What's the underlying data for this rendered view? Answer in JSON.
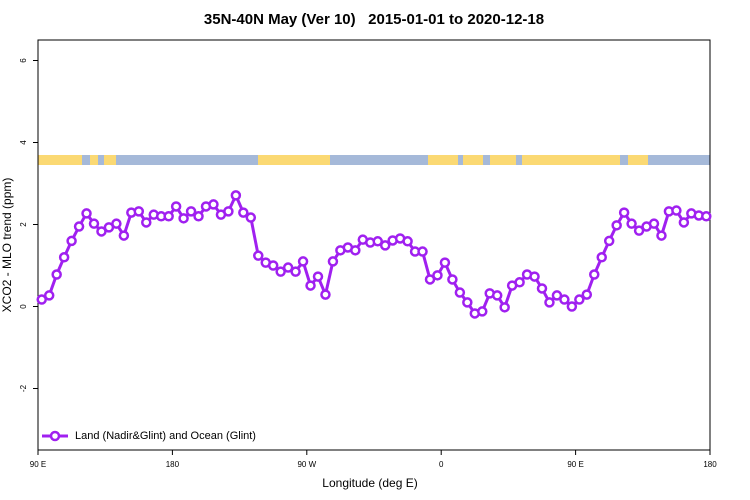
{
  "chart_data": {
    "type": "line",
    "title": "35N-40N May (Ver 10)   2015-01-01 to 2020-12-18",
    "x_label": "Longitude (deg E)",
    "y_label": "XCO2 - MLO trend (ppm)",
    "xlim": [
      90,
      540
    ],
    "ylim": [
      -3.5,
      6.5
    ],
    "xticks": [
      {
        "value": 90,
        "label": "90 E"
      },
      {
        "value": 180,
        "label": "180"
      },
      {
        "value": 270,
        "label": "90 W"
      },
      {
        "value": 360,
        "label": "0"
      },
      {
        "value": 450,
        "label": "90 E"
      },
      {
        "value": 540,
        "label": "180"
      }
    ],
    "yticks": [
      -2,
      0,
      2,
      4,
      6
    ],
    "legend": "bottom-left",
    "x": [
      92.5,
      97.5,
      102.5,
      107.5,
      112.5,
      117.5,
      122.5,
      127.5,
      132.5,
      137.5,
      142.5,
      147.5,
      152.5,
      157.5,
      162.5,
      167.5,
      172.5,
      177.5,
      182.5,
      187.5,
      192.5,
      197.5,
      202.5,
      207.5,
      212.5,
      217.5,
      222.5,
      227.5,
      232.5,
      237.5,
      242.5,
      247.5,
      252.5,
      257.5,
      262.5,
      267.5,
      272.5,
      277.5,
      282.5,
      287.5,
      292.5,
      297.5,
      302.5,
      307.5,
      312.5,
      317.5,
      322.5,
      327.5,
      332.5,
      337.5,
      342.5,
      347.5,
      352.5,
      357.5,
      362.5,
      367.5,
      372.5,
      377.5,
      382.5,
      387.5,
      392.5,
      397.5,
      402.5,
      407.5,
      412.5,
      417.5,
      422.5,
      427.5,
      432.5,
      437.5,
      442.5,
      447.5,
      452.5,
      457.5,
      462.5,
      467.5,
      472.5,
      477.5,
      482.5,
      487.5,
      492.5,
      497.5,
      502.5,
      507.5,
      512.5,
      517.5,
      522.5,
      527.5,
      532.5,
      537.5
    ],
    "series": [
      {
        "name": "Land (Nadir&Glint) and Ocean (Glint)",
        "color": "#a020f0",
        "values": [
          0.17,
          0.27,
          0.78,
          1.2,
          1.6,
          1.95,
          2.27,
          2.02,
          1.83,
          1.93,
          2.02,
          1.73,
          2.29,
          2.32,
          2.05,
          2.24,
          2.2,
          2.2,
          2.44,
          2.15,
          2.32,
          2.2,
          2.44,
          2.49,
          2.24,
          2.32,
          2.71,
          2.29,
          2.17,
          1.24,
          1.07,
          1.0,
          0.85,
          0.95,
          0.85,
          1.1,
          0.51,
          0.73,
          0.29,
          1.1,
          1.37,
          1.44,
          1.37,
          1.63,
          1.56,
          1.59,
          1.49,
          1.61,
          1.66,
          1.59,
          1.34,
          1.34,
          0.66,
          0.76,
          1.07,
          0.66,
          0.34,
          0.1,
          -0.17,
          -0.12,
          0.32,
          0.27,
          -0.02,
          0.51,
          0.59,
          0.78,
          0.73,
          0.44,
          0.1,
          0.27,
          0.17,
          0,
          0.17,
          0.29,
          0.78,
          1.2,
          1.6,
          1.98,
          2.29,
          2.02,
          1.85,
          1.95,
          2.02,
          1.73,
          2.32,
          2.34,
          2.05,
          2.27,
          2.22,
          2.2
        ]
      }
    ]
  }
}
